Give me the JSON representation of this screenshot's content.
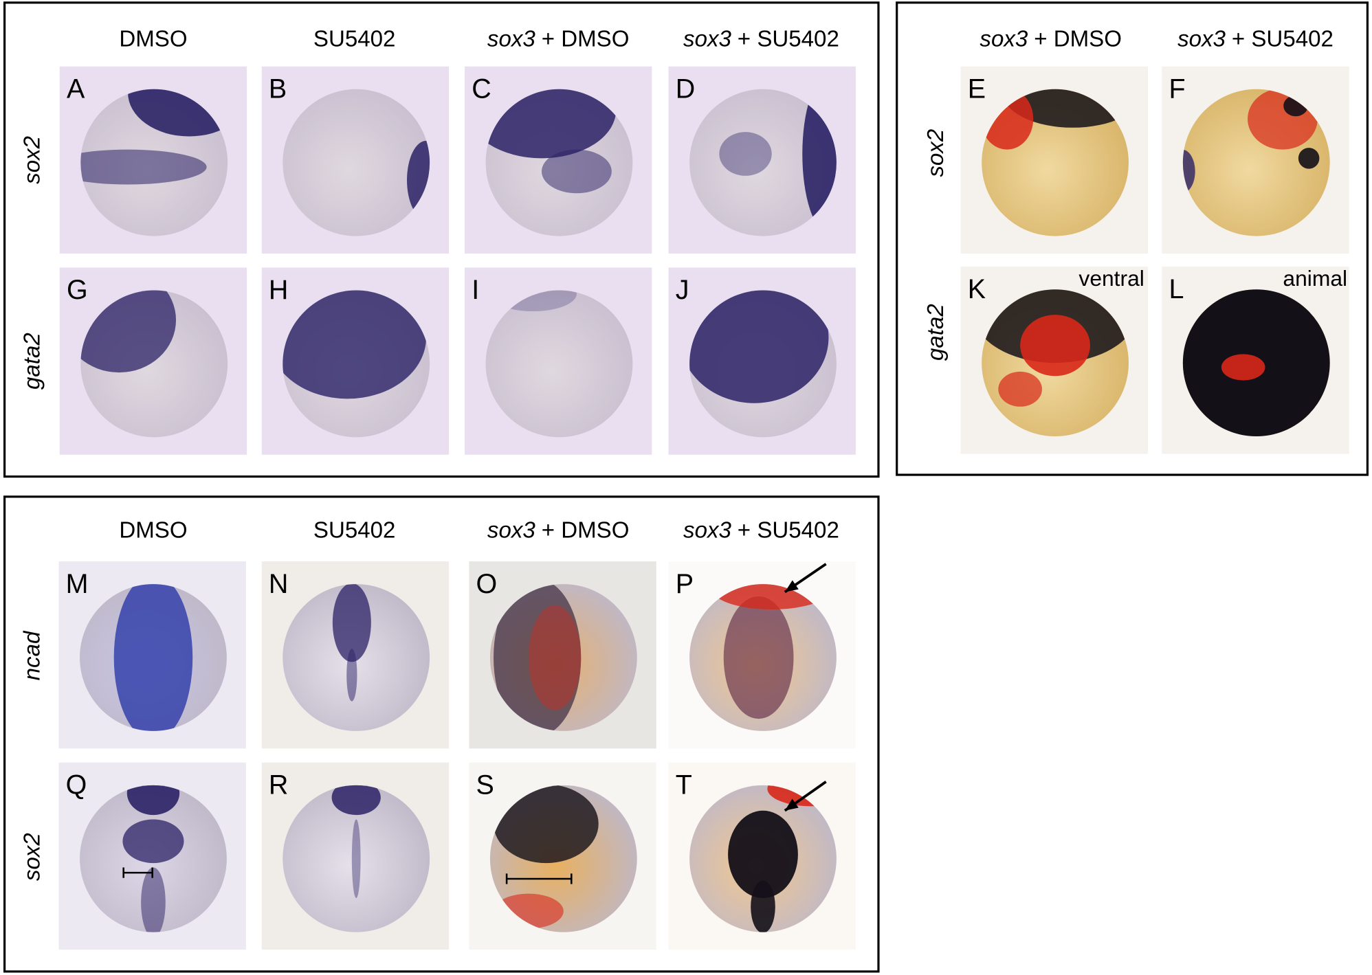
{
  "panel_group_1": {
    "column_headers": [
      {
        "treatment": "DMSO"
      },
      {
        "treatment": "SU5402"
      },
      {
        "gene": "sox3",
        "treatment": "+ DMSO"
      },
      {
        "gene": "sox3",
        "treatment": "+ SU5402"
      }
    ],
    "row_labels": [
      "sox2",
      "gata2"
    ],
    "panel_letters": [
      [
        "A",
        "B",
        "C",
        "D"
      ],
      [
        "G",
        "H",
        "I",
        "J"
      ]
    ]
  },
  "panel_group_2": {
    "column_headers": [
      {
        "gene": "sox3",
        "treatment": "+ DMSO"
      },
      {
        "gene": "sox3",
        "treatment": "+ SU5402"
      }
    ],
    "row_labels": [
      "sox2",
      "gata2"
    ],
    "panel_letters": [
      [
        "E",
        "F"
      ],
      [
        "K",
        "L"
      ]
    ],
    "annotations": [
      "ventral",
      "animal"
    ]
  },
  "panel_group_3": {
    "column_headers": [
      {
        "treatment": "DMSO"
      },
      {
        "treatment": "SU5402"
      },
      {
        "gene": "sox3",
        "treatment": "+ DMSO"
      },
      {
        "gene": "sox3",
        "treatment": "+ SU5402"
      }
    ],
    "row_labels": [
      "ncad",
      "sox2"
    ],
    "panel_letters": [
      [
        "M",
        "N",
        "O",
        "P"
      ],
      [
        "Q",
        "R",
        "S",
        "T"
      ]
    ]
  }
}
